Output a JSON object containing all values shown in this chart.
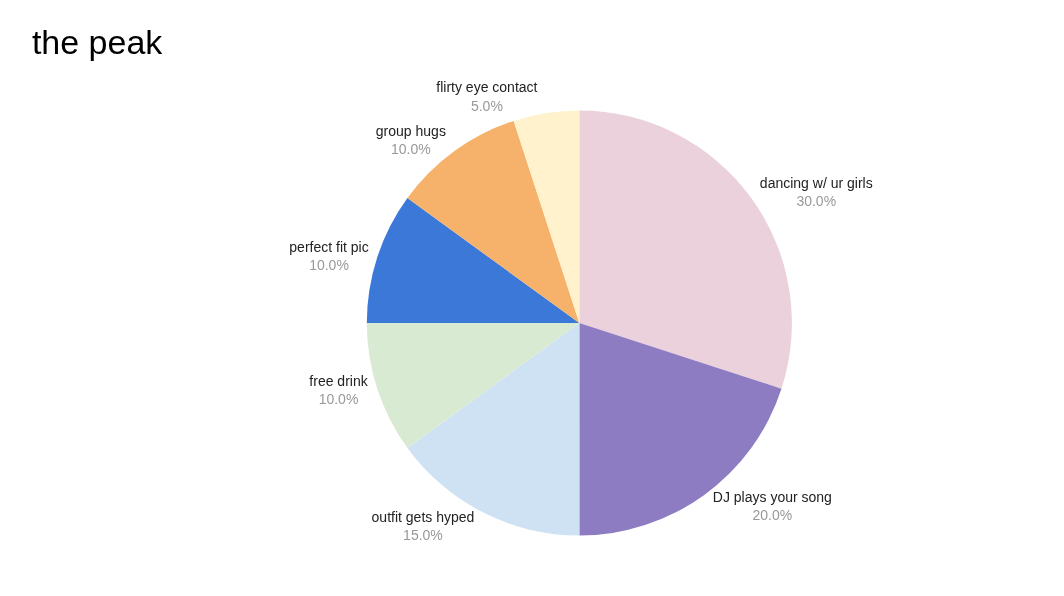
{
  "chart_data": {
    "type": "pie",
    "title": "the peak",
    "categories": [
      "dancing w/ ur girls",
      "DJ plays your song",
      "outfit gets hyped",
      "free drink",
      "perfect fit pic",
      "group hugs",
      "flirty eye contact"
    ],
    "values": [
      30,
      20,
      15,
      10,
      10,
      10,
      5
    ],
    "value_labels": [
      "30.0%",
      "20.0%",
      "15.0%",
      "10.0%",
      "10.0%",
      "10.0%",
      "5.0%"
    ],
    "colors": [
      "#ead1dc",
      "#8e7cc3",
      "#cfe2f3",
      "#d9ead3",
      "#3c78d8",
      "#f6b26b",
      "#fff2cc"
    ],
    "legend": false
  }
}
